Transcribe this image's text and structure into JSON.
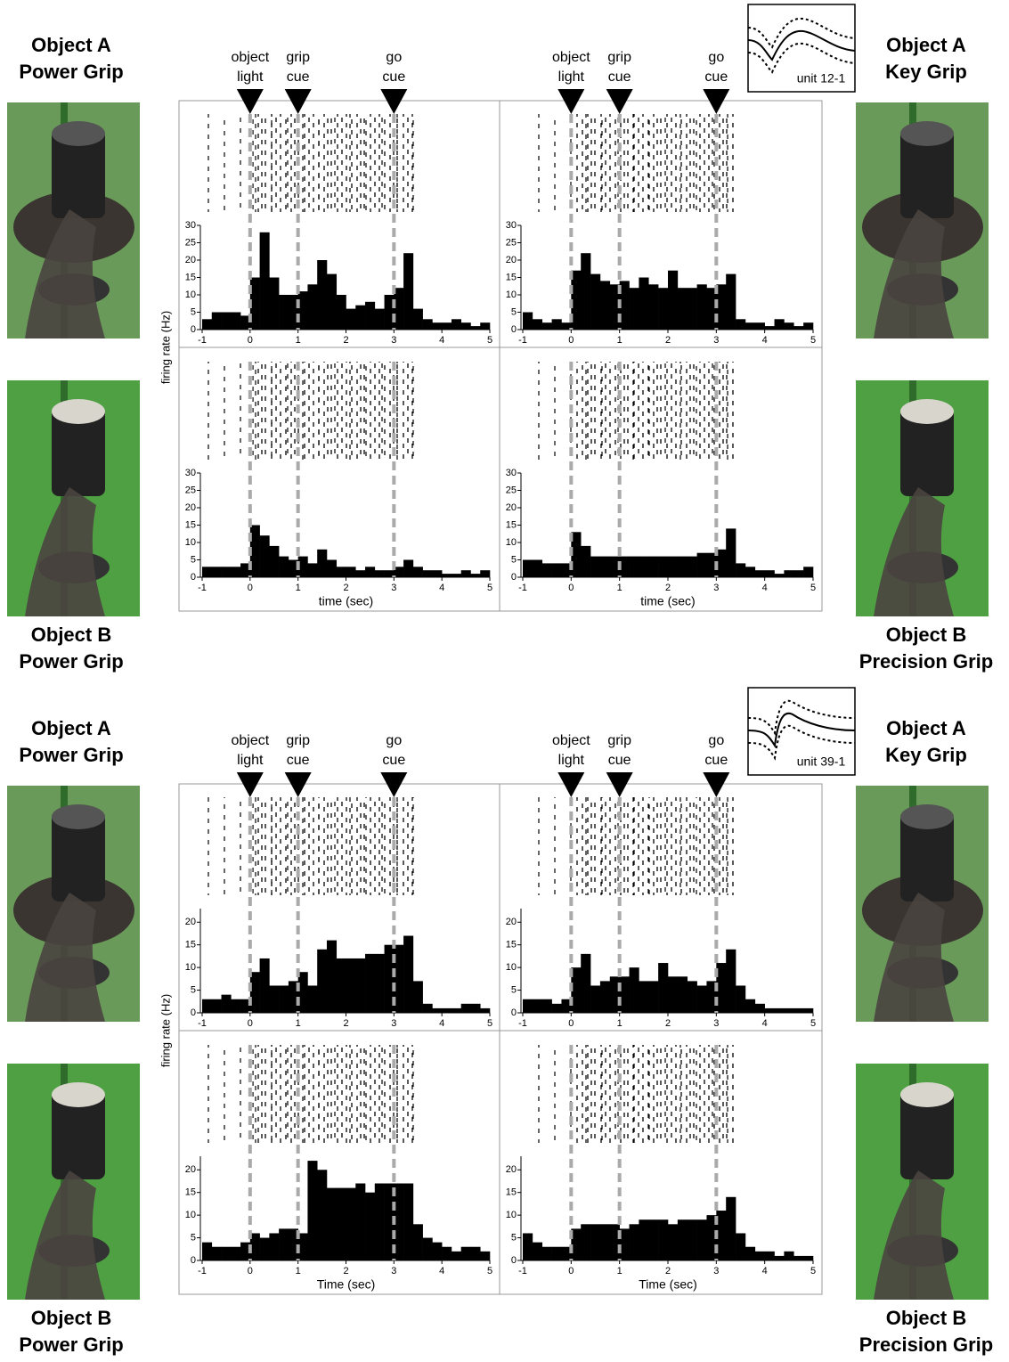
{
  "figures": [
    {
      "unit": "unit 12-1",
      "ylabel": "firing rate (Hz)",
      "events": [
        {
          "value": 0,
          "label": [
            "object",
            "light"
          ]
        },
        {
          "value": 1,
          "label": [
            "grip",
            "cue"
          ]
        },
        {
          "value": 3,
          "label": [
            "go",
            "cue"
          ]
        }
      ],
      "left": [
        [
          "Object A",
          "Power Grip"
        ],
        [
          "Object B",
          "Power Grip"
        ]
      ],
      "right": [
        [
          "Object A",
          "Key Grip"
        ],
        [
          "Object B",
          "Precision Grip"
        ]
      ]
    },
    {
      "unit": "unit 39-1",
      "ylabel": "firing rate (Hz)",
      "events": [
        {
          "value": 0,
          "label": [
            "object",
            "light"
          ]
        },
        {
          "value": 1,
          "label": [
            "grip",
            "cue"
          ]
        },
        {
          "value": 3,
          "label": [
            "go",
            "cue"
          ]
        }
      ],
      "left": [
        [
          "Object A",
          "Power Grip"
        ],
        [
          "Object B",
          "Power Grip"
        ]
      ],
      "right": [
        [
          "Object A",
          "Key Grip"
        ],
        [
          "Object B",
          "Precision Grip"
        ]
      ]
    }
  ],
  "chart_data": [
    {
      "type": "histogram",
      "bins": [
        -1,
        -0.8,
        -0.6,
        -0.4,
        -0.2,
        0,
        0.2,
        0.4,
        0.6,
        0.8,
        1,
        1.2,
        1.4,
        1.6,
        1.8,
        2,
        2.2,
        2.4,
        2.6,
        2.8,
        3,
        3.2,
        3.4,
        3.6,
        3.8,
        4,
        4.2,
        4.4,
        4.6,
        4.8,
        5
      ],
      "values": [
        3,
        5,
        5,
        5,
        4,
        15,
        28,
        15,
        10,
        10,
        11,
        13,
        20,
        16,
        10,
        6,
        7,
        8,
        6,
        10,
        12,
        22,
        6,
        3,
        2,
        2,
        3,
        2,
        1,
        2
      ],
      "xlim": [
        -1,
        5
      ],
      "xticks": [
        -1,
        0,
        1,
        2,
        3,
        4,
        5
      ],
      "ylim": [
        0,
        30
      ],
      "yticks": [
        0,
        5,
        10,
        15,
        20,
        25,
        30
      ]
    },
    {
      "type": "histogram",
      "bins": [
        -1,
        -0.8,
        -0.6,
        -0.4,
        -0.2,
        0,
        0.2,
        0.4,
        0.6,
        0.8,
        1,
        1.2,
        1.4,
        1.6,
        1.8,
        2,
        2.2,
        2.4,
        2.6,
        2.8,
        3,
        3.2,
        3.4,
        3.6,
        3.8,
        4,
        4.2,
        4.4,
        4.6,
        4.8,
        5
      ],
      "values": [
        5,
        3,
        2,
        3,
        2,
        17,
        22,
        16,
        14,
        13,
        14,
        12,
        15,
        13,
        12,
        17,
        12,
        12,
        13,
        12,
        13,
        16,
        3,
        2,
        2,
        1,
        3,
        2,
        1,
        2
      ],
      "xlim": [
        -1,
        5
      ],
      "xticks": [
        -1,
        0,
        1,
        2,
        3,
        4,
        5
      ],
      "ylim": [
        0,
        30
      ],
      "yticks": [
        0,
        5,
        10,
        15,
        20,
        25,
        30
      ]
    },
    {
      "type": "histogram",
      "bins": [
        -1,
        -0.8,
        -0.6,
        -0.4,
        -0.2,
        0,
        0.2,
        0.4,
        0.6,
        0.8,
        1,
        1.2,
        1.4,
        1.6,
        1.8,
        2,
        2.2,
        2.4,
        2.6,
        2.8,
        3,
        3.2,
        3.4,
        3.6,
        3.8,
        4,
        4.2,
        4.4,
        4.6,
        4.8,
        5
      ],
      "values": [
        3,
        3,
        3,
        3,
        4,
        15,
        12,
        9,
        6,
        5,
        6,
        4,
        8,
        5,
        3,
        3,
        2,
        3,
        2,
        2,
        3,
        5,
        3,
        2,
        2,
        1,
        1,
        2,
        1,
        2
      ],
      "xlim": [
        -1,
        5
      ],
      "xticks": [
        -1,
        0,
        1,
        2,
        3,
        4,
        5
      ],
      "ylim": [
        0,
        30
      ],
      "yticks": [
        0,
        5,
        10,
        15,
        20,
        25,
        30
      ],
      "xlabel": "time (sec)"
    },
    {
      "type": "histogram",
      "bins": [
        -1,
        -0.8,
        -0.6,
        -0.4,
        -0.2,
        0,
        0.2,
        0.4,
        0.6,
        0.8,
        1,
        1.2,
        1.4,
        1.6,
        1.8,
        2,
        2.2,
        2.4,
        2.6,
        2.8,
        3,
        3.2,
        3.4,
        3.6,
        3.8,
        4,
        4.2,
        4.4,
        4.6,
        4.8,
        5
      ],
      "values": [
        5,
        5,
        4,
        4,
        4,
        13,
        9,
        6,
        6,
        6,
        6,
        6,
        6,
        6,
        6,
        6,
        6,
        6,
        7,
        7,
        8,
        14,
        4,
        3,
        2,
        2,
        1,
        2,
        2,
        3
      ],
      "xlim": [
        -1,
        5
      ],
      "xticks": [
        -1,
        0,
        1,
        2,
        3,
        4,
        5
      ],
      "ylim": [
        0,
        30
      ],
      "yticks": [
        0,
        5,
        10,
        15,
        20,
        25,
        30
      ],
      "xlabel": "time (sec)"
    },
    {
      "type": "histogram",
      "bins": [
        -1,
        -0.8,
        -0.6,
        -0.4,
        -0.2,
        0,
        0.2,
        0.4,
        0.6,
        0.8,
        1,
        1.2,
        1.4,
        1.6,
        1.8,
        2,
        2.2,
        2.4,
        2.6,
        2.8,
        3,
        3.2,
        3.4,
        3.6,
        3.8,
        4,
        4.2,
        4.4,
        4.6,
        4.8,
        5
      ],
      "values": [
        3,
        3,
        4,
        3,
        3,
        9,
        12,
        6,
        6,
        7,
        9,
        6,
        14,
        16,
        12,
        12,
        12,
        13,
        13,
        15,
        15,
        17,
        7,
        2,
        1,
        1,
        1,
        2,
        2,
        1
      ],
      "xlim": [
        -1,
        5
      ],
      "xticks": [
        -1,
        0,
        1,
        2,
        3,
        4,
        5
      ],
      "ylim": [
        0,
        23
      ],
      "yticks": [
        0,
        5,
        10,
        15,
        20
      ]
    },
    {
      "type": "histogram",
      "bins": [
        -1,
        -0.8,
        -0.6,
        -0.4,
        -0.2,
        0,
        0.2,
        0.4,
        0.6,
        0.8,
        1,
        1.2,
        1.4,
        1.6,
        1.8,
        2,
        2.2,
        2.4,
        2.6,
        2.8,
        3,
        3.2,
        3.4,
        3.6,
        3.8,
        4,
        4.2,
        4.4,
        4.6,
        4.8,
        5
      ],
      "values": [
        3,
        3,
        3,
        2,
        3,
        10,
        13,
        6,
        7,
        8,
        8,
        10,
        7,
        7,
        11,
        8,
        8,
        7,
        6,
        7,
        11,
        14,
        6,
        3,
        2,
        1,
        1,
        1,
        1,
        1
      ],
      "xlim": [
        -1,
        5
      ],
      "xticks": [
        -1,
        0,
        1,
        2,
        3,
        4,
        5
      ],
      "ylim": [
        0,
        23
      ],
      "yticks": [
        0,
        5,
        10,
        15,
        20
      ]
    },
    {
      "type": "histogram",
      "bins": [
        -1,
        -0.8,
        -0.6,
        -0.4,
        -0.2,
        0,
        0.2,
        0.4,
        0.6,
        0.8,
        1,
        1.2,
        1.4,
        1.6,
        1.8,
        2,
        2.2,
        2.4,
        2.6,
        2.8,
        3,
        3.2,
        3.4,
        3.6,
        3.8,
        4,
        4.2,
        4.4,
        4.6,
        4.8,
        5
      ],
      "values": [
        4,
        3,
        3,
        3,
        4,
        6,
        5,
        6,
        7,
        7,
        6,
        22,
        20,
        16,
        16,
        16,
        17,
        15,
        17,
        17,
        17,
        17,
        8,
        5,
        4,
        3,
        2,
        3,
        3,
        2
      ],
      "xlim": [
        -1,
        5
      ],
      "xticks": [
        -1,
        0,
        1,
        2,
        3,
        4,
        5
      ],
      "ylim": [
        0,
        23
      ],
      "yticks": [
        0,
        5,
        10,
        15,
        20
      ],
      "xlabel": "Time (sec)"
    },
    {
      "type": "histogram",
      "bins": [
        -1,
        -0.8,
        -0.6,
        -0.4,
        -0.2,
        0,
        0.2,
        0.4,
        0.6,
        0.8,
        1,
        1.2,
        1.4,
        1.6,
        1.8,
        2,
        2.2,
        2.4,
        2.6,
        2.8,
        3,
        3.2,
        3.4,
        3.6,
        3.8,
        4,
        4.2,
        4.4,
        4.6,
        4.8,
        5
      ],
      "values": [
        6,
        4,
        3,
        3,
        3,
        7,
        8,
        8,
        8,
        8,
        7,
        8,
        9,
        9,
        9,
        8,
        9,
        9,
        9,
        10,
        11,
        14,
        6,
        3,
        2,
        2,
        1,
        2,
        1,
        1
      ],
      "xlim": [
        -1,
        5
      ],
      "xticks": [
        -1,
        0,
        1,
        2,
        3,
        4,
        5
      ],
      "ylim": [
        0,
        23
      ],
      "yticks": [
        0,
        5,
        10,
        15,
        20
      ],
      "xlabel": "Time (sec)"
    }
  ]
}
